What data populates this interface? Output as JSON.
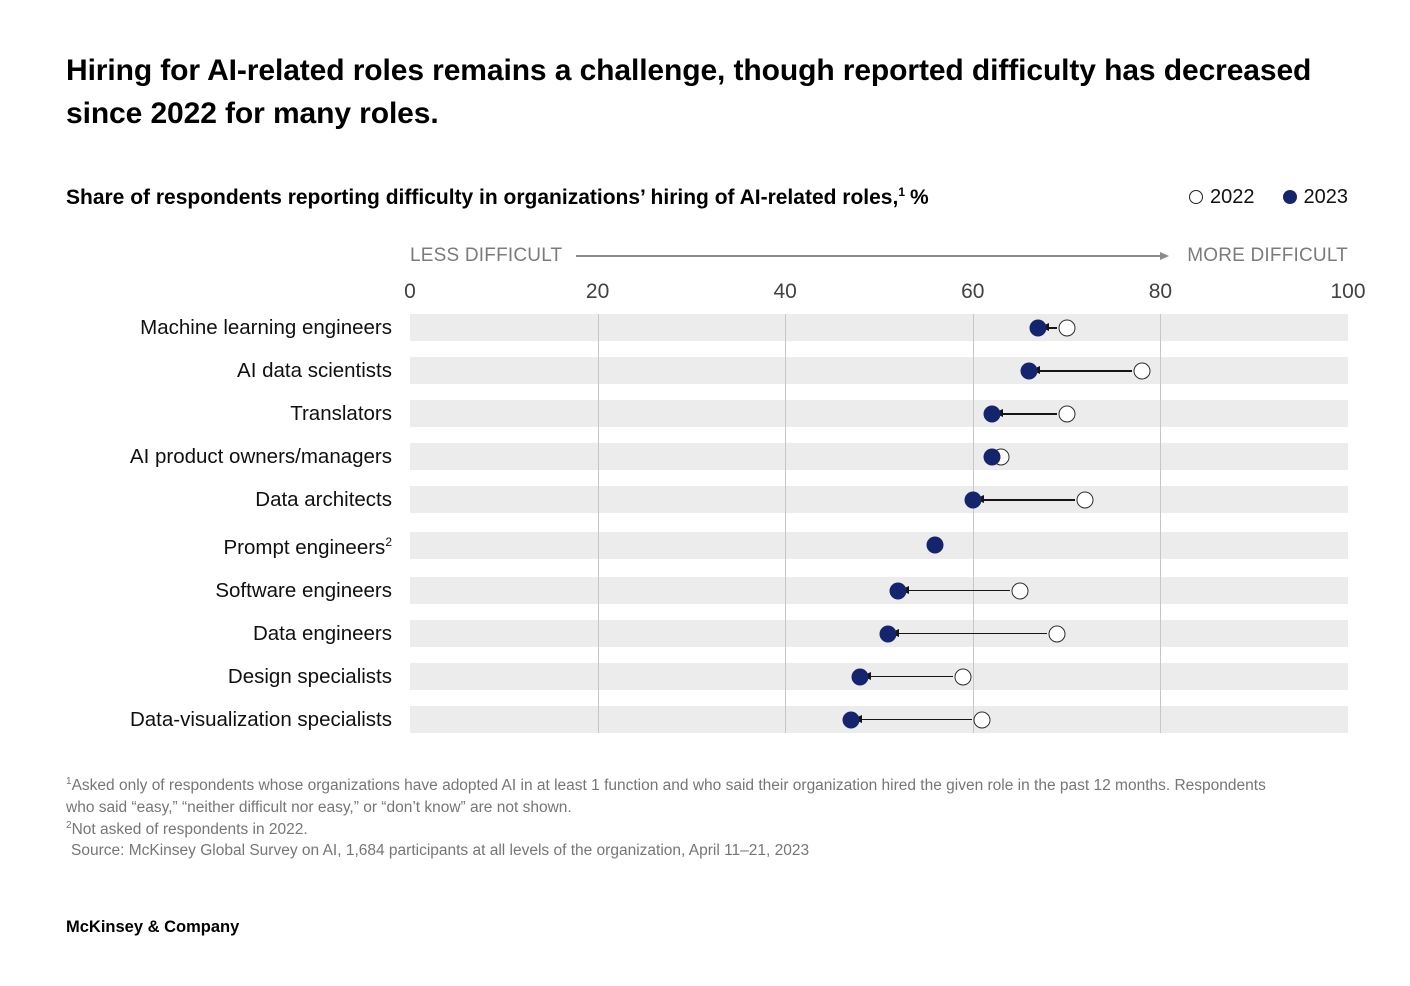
{
  "title": "Hiring for AI-related roles remains a challenge, though reported difficulty has decreased since 2022 for many roles.",
  "subtitle": {
    "text": "Share of respondents reporting difficulty in organizations’ hiring of AI-related roles,",
    "sup": "1",
    "unit": "%"
  },
  "legend": {
    "items": [
      {
        "label": "2022",
        "marker": "open"
      },
      {
        "label": "2023",
        "marker": "filled"
      }
    ]
  },
  "axis": {
    "less_label": "LESS DIFFICULT",
    "more_label": "MORE DIFFICULT",
    "min": 0,
    "max": 100,
    "ticks": [
      "0",
      "20",
      "40",
      "60",
      "80",
      "100"
    ]
  },
  "chart_data": {
    "type": "dumbbell",
    "title": "Share of respondents reporting difficulty in organizations’ hiring of AI-related roles, %",
    "xlim": [
      0,
      100
    ],
    "grid": "vertical-ticks-at-20",
    "legend_position": "top-right",
    "categories": [
      "Machine learning engineers",
      "AI data scientists",
      "Translators",
      "AI product owners/managers",
      "Data architects",
      "Prompt engineers",
      "Software engineers",
      "Data engineers",
      "Design specialists",
      "Data-visualization specialists"
    ],
    "category_superscripts": {
      "Prompt engineers": "2"
    },
    "series": [
      {
        "name": "2022",
        "marker": "open",
        "values": [
          70,
          78,
          70,
          63,
          72,
          null,
          65,
          69,
          59,
          61
        ]
      },
      {
        "name": "2023",
        "marker": "filled",
        "values": [
          67,
          66,
          62,
          62,
          60,
          56,
          52,
          51,
          48,
          47
        ]
      }
    ],
    "annotation": "Arrows point from 2022 value to lower 2023 value"
  },
  "footnotes": [
    {
      "sup": "1",
      "text": "Asked only of respondents whose organizations have adopted AI in at least 1 function and who said their organization hired the given role in the past 12 months. Respondents who said “easy,” “neither difficult nor easy,” or “don’t know” are not shown."
    },
    {
      "sup": "2",
      "text": "Not asked of respondents in 2022."
    },
    {
      "sup": "",
      "text": "Source: McKinsey Global Survey on AI, 1,684 participants at all levels of the organization, April 11–21, 2023"
    }
  ],
  "footer": "McKinsey & Company",
  "colors": {
    "filled_dot": "#15256d",
    "open_dot_border": "#2d2d2d",
    "band": "#ececec",
    "gridline": "#c6c6c6",
    "arrow": "#151515",
    "axis_text": "#7b7b7b"
  }
}
